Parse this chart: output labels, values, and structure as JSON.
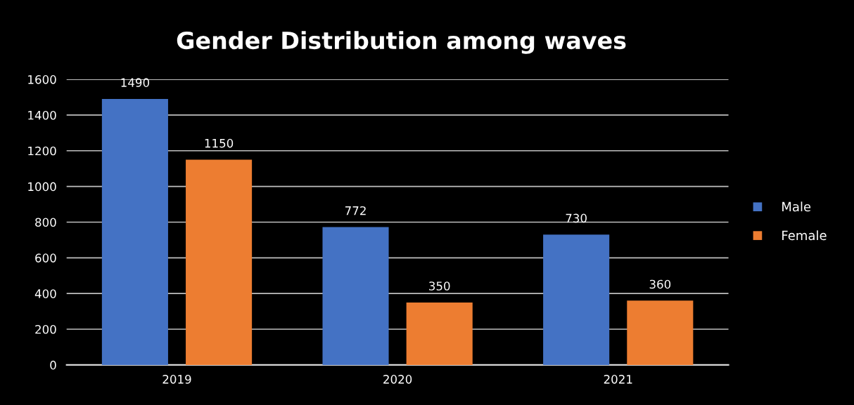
{
  "chart_data": {
    "type": "bar",
    "title": "Gender Distribution among waves",
    "categories": [
      "2019",
      "2020",
      "2021"
    ],
    "series": [
      {
        "name": "Male",
        "color": "#4472c4",
        "values": [
          1490,
          772,
          730
        ]
      },
      {
        "name": "Female",
        "color": "#ed7d31",
        "values": [
          1150,
          350,
          360
        ]
      }
    ],
    "ylim": [
      0,
      1600
    ],
    "yticks": [
      0,
      200,
      400,
      600,
      800,
      1000,
      1200,
      1400,
      1600
    ],
    "grid": "y",
    "legend": "right",
    "data_labels": true
  }
}
